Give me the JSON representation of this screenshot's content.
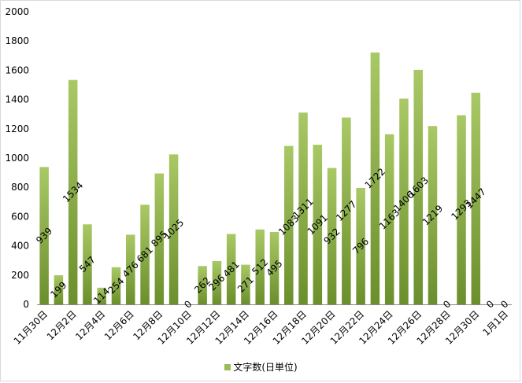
{
  "chart_data": {
    "type": "bar",
    "categories": [
      "11月30日",
      "12月1日",
      "12月2日",
      "12月3日",
      "12月4日",
      "12月5日",
      "12月6日",
      "12月7日",
      "12月8日",
      "12月9日",
      "12月10日",
      "12月11日",
      "12月12日",
      "12月13日",
      "12月14日",
      "12月15日",
      "12月16日",
      "12月17日",
      "12月18日",
      "12月19日",
      "12月20日",
      "12月21日",
      "12月22日",
      "12月23日",
      "12月24日",
      "12月25日",
      "12月26日",
      "12月27日",
      "12月28日",
      "12月29日",
      "12月30日",
      "12月31日",
      "1月1日"
    ],
    "tick_labels": [
      "11月30日",
      "12月2日",
      "12月4日",
      "12月6日",
      "12月8日",
      "12月10日",
      "12月12日",
      "12月14日",
      "12月16日",
      "12月18日",
      "12月20日",
      "12月22日",
      "12月24日",
      "12月26日",
      "12月28日",
      "12月30日",
      "1月1日"
    ],
    "series": [
      {
        "name": "文字数(日単位)",
        "values": [
          939,
          199,
          1534,
          547,
          114,
          254,
          476,
          681,
          895,
          1025,
          0,
          262,
          296,
          481,
          271,
          512,
          495,
          1083,
          1311,
          1091,
          932,
          1277,
          796,
          1722,
          1163,
          1406,
          1603,
          1219,
          0,
          1293,
          1447,
          0,
          0
        ]
      }
    ],
    "ylim": [
      0,
      2000
    ],
    "yticks": [
      0,
      200,
      400,
      600,
      800,
      1000,
      1200,
      1400,
      1600,
      1800,
      2000
    ],
    "grid": false,
    "legend": "bottom",
    "colors": {
      "bar_light": "#9bbb59",
      "bar_dark": "#5e7d24",
      "axis": "#898989"
    }
  }
}
